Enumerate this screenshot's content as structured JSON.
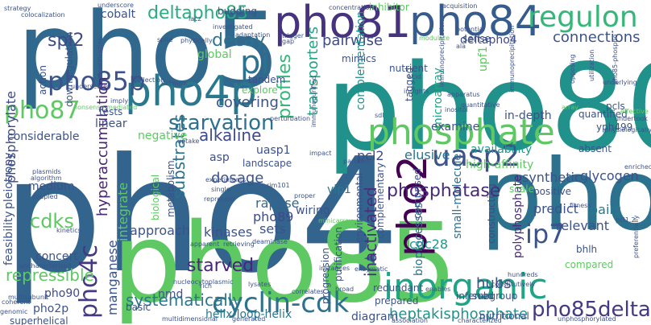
{
  "words": [
    {
      "text": "pho4",
      "color": "#32648e",
      "rotate": 0
    },
    {
      "text": "pho80",
      "color": "#21918c",
      "rotate": 0
    },
    {
      "text": "pho85",
      "color": "#5ec962",
      "rotate": 0
    },
    {
      "text": "pho5",
      "color": "#31688e",
      "rotate": 0
    },
    {
      "text": "pho",
      "color": "#2c728e",
      "rotate": 0
    },
    {
      "text": "pho81",
      "color": "#46327e",
      "rotate": 0
    },
    {
      "text": "pho84",
      "color": "#365c8d",
      "rotate": 0
    },
    {
      "text": "phosphate",
      "color": "#5ec962",
      "rotate": 0
    },
    {
      "text": "inorganic",
      "color": "#20a486",
      "rotate": 0
    },
    {
      "text": "pho4p",
      "color": "#2a788e",
      "rotate": 0
    },
    {
      "text": "pho2",
      "color": "#440154",
      "rotate": 270
    },
    {
      "text": "regulon",
      "color": "#35b779",
      "rotate": 0
    },
    {
      "text": "uasp2",
      "color": "#3b528b",
      "rotate": 0
    },
    {
      "text": "cyclin-cdk",
      "color": "#2c728e",
      "rotate": 0
    },
    {
      "text": "ip7",
      "color": "#3b528b",
      "rotate": 0
    },
    {
      "text": "pi",
      "color": "#2c728e",
      "rotate": 0
    },
    {
      "text": "pho85p",
      "color": "#3b528b",
      "rotate": 0
    },
    {
      "text": "pho87",
      "color": "#5ec962",
      "rotate": 0
    },
    {
      "text": "pho4c",
      "color": "#443983",
      "rotate": 270
    },
    {
      "text": "pho85delta",
      "color": "#443a83",
      "rotate": 0
    },
    {
      "text": "starvation",
      "color": "#2c728e",
      "rotate": 0
    },
    {
      "text": "phosphatase",
      "color": "#482878",
      "rotate": 0
    },
    {
      "text": "deltapho85",
      "color": "#27ad81",
      "rotate": 0
    },
    {
      "text": "spl2",
      "color": "#3e4a89",
      "rotate": 0
    },
    {
      "text": "decay",
      "color": "#2c728e",
      "rotate": 0
    },
    {
      "text": "hubs",
      "color": "#3b528b",
      "rotate": 0
    },
    {
      "text": "starved",
      "color": "#482677",
      "rotate": 0
    },
    {
      "text": "systematically",
      "color": "#2a788e",
      "rotate": 0
    },
    {
      "text": "heptakisphosphate",
      "color": "#21918c",
      "rotate": 0
    },
    {
      "text": "cdc28",
      "color": "#1f988b",
      "rotate": 0
    },
    {
      "text": "cdks",
      "color": "#5ec962",
      "rotate": 0
    },
    {
      "text": "profiles",
      "color": "#35b779",
      "rotate": 270
    },
    {
      "text": "transporters",
      "color": "#20a486",
      "rotate": 270
    },
    {
      "text": "connections",
      "color": "#3b528b",
      "rotate": 0
    },
    {
      "text": "pairwise",
      "color": "#3e4a89",
      "rotate": 0
    },
    {
      "text": "alkaline",
      "color": "#3e4a89",
      "rotate": 0
    },
    {
      "text": "hyperaccumulation",
      "color": "#482677",
      "rotate": 270
    },
    {
      "text": "phosphorylate",
      "color": "#3e4a89",
      "rotate": 270
    },
    {
      "text": "repressible",
      "color": "#5ec962",
      "rotate": 0
    },
    {
      "text": "substrates",
      "color": "#2c728e",
      "rotate": 270
    },
    {
      "text": "inactivated",
      "color": "#472f7d",
      "rotate": 270
    },
    {
      "text": "pho89",
      "color": "#3e4a89",
      "rotate": 0
    },
    {
      "text": "rapase",
      "color": "#31688e",
      "rotate": 0
    },
    {
      "text": "dosage",
      "color": "#3b528b",
      "rotate": 0
    },
    {
      "text": "covering",
      "color": "#3b528b",
      "rotate": 0
    },
    {
      "text": "availability",
      "color": "#1f988b",
      "rotate": 0
    },
    {
      "text": "elusive",
      "color": "#2c728e",
      "rotate": 0
    },
    {
      "text": "pcl2",
      "color": "#3e4a89",
      "rotate": 0
    },
    {
      "text": "complementation",
      "color": "#21918c",
      "rotate": 270
    },
    {
      "text": "microarray",
      "color": "#20a486",
      "rotate": 270
    },
    {
      "text": "glycogen",
      "color": "#3b528b",
      "rotate": 0
    },
    {
      "text": "synthetic",
      "color": "#3b528b",
      "rotate": 0
    },
    {
      "text": "predict",
      "color": "#3b528b",
      "rotate": 0
    },
    {
      "text": "pairs",
      "color": "#2a788e",
      "rotate": 0
    },
    {
      "text": "upf1",
      "color": "#5ec962",
      "rotate": 270
    },
    {
      "text": "deltapho4",
      "color": "#3e4a89",
      "rotate": 0
    },
    {
      "text": "relevant",
      "color": "#3b528b",
      "rotate": 0
    },
    {
      "text": "approach",
      "color": "#3b528b",
      "rotate": 0
    },
    {
      "text": "kinases",
      "color": "#3b528b",
      "rotate": 0
    },
    {
      "text": "sets",
      "color": "#3b528b",
      "rotate": 0
    },
    {
      "text": "integrate",
      "color": "#5ec962",
      "rotate": 270
    },
    {
      "text": "manganese",
      "color": "#3b528b",
      "rotate": 270
    },
    {
      "text": "pho90",
      "color": "#3e4a89",
      "rotate": 0
    },
    {
      "text": "pho2p",
      "color": "#3b528b",
      "rotate": 0
    },
    {
      "text": "superhelical",
      "color": "#3b528b",
      "rotate": 0
    },
    {
      "text": "nmd",
      "color": "#3b528b",
      "rotate": 0
    },
    {
      "text": "basic",
      "color": "#3b528b",
      "rotate": 0
    },
    {
      "text": "helix-loop-helix",
      "color": "#2a788e",
      "rotate": 0
    },
    {
      "text": "diagram",
      "color": "#3b528b",
      "rotate": 0
    },
    {
      "text": "nutritional",
      "color": "#3b528b",
      "rotate": 0
    },
    {
      "text": "bioprocesses",
      "color": "#2c728e",
      "rotate": 270
    },
    {
      "text": "small-molecule",
      "color": "#2c728e",
      "rotate": 270
    },
    {
      "text": "high-affinity",
      "color": "#5ec962",
      "rotate": 0
    },
    {
      "text": "polyphosphate",
      "color": "#482878",
      "rotate": 270
    },
    {
      "text": "constructing",
      "color": "#3e4a89",
      "rotate": 270
    },
    {
      "text": "comprised",
      "color": "#3b528b",
      "rotate": 270
    },
    {
      "text": "complementary",
      "color": "#3b528b",
      "rotate": 270
    },
    {
      "text": "environmental",
      "color": "#3b528b",
      "rotate": 270
    },
    {
      "text": "purification",
      "color": "#3b528b",
      "rotate": 270
    },
    {
      "text": "progression",
      "color": "#3b528b",
      "rotate": 270
    },
    {
      "text": "wiring",
      "color": "#3b528b",
      "rotate": 0
    },
    {
      "text": "vip1",
      "color": "#2a788e",
      "rotate": 0
    },
    {
      "text": "uasp1",
      "color": "#3b528b",
      "rotate": 0
    },
    {
      "text": "landscape",
      "color": "#3b528b",
      "rotate": 0
    },
    {
      "text": "asp",
      "color": "#3b528b",
      "rotate": 0
    },
    {
      "text": "negative",
      "color": "#5ec962",
      "rotate": 0
    },
    {
      "text": "linear",
      "color": "#3b528b",
      "rotate": 0
    },
    {
      "text": "tests",
      "color": "#3b528b",
      "rotate": 0
    },
    {
      "text": "considerable",
      "color": "#3b528b",
      "rotate": 0
    },
    {
      "text": "pleiotropy",
      "color": "#3b528b",
      "rotate": 270
    },
    {
      "text": "feasibility",
      "color": "#3b528b",
      "rotate": 270
    },
    {
      "text": "medium",
      "color": "#3b528b",
      "rotate": 0
    },
    {
      "text": "concert",
      "color": "#3b528b",
      "rotate": 0
    },
    {
      "text": "downregulation",
      "color": "#3b528b",
      "rotate": 270
    },
    {
      "text": "action",
      "color": "#3b528b",
      "rotate": 270
    },
    {
      "text": "cobalt",
      "color": "#3b528b",
      "rotate": 0
    },
    {
      "text": "budding",
      "color": "#3b528b",
      "rotate": 0
    },
    {
      "text": "global",
      "color": "#5ec962",
      "rotate": 0
    },
    {
      "text": "tandem",
      "color": "#3b528b",
      "rotate": 0
    },
    {
      "text": "explore",
      "color": "#5ec962",
      "rotate": 0
    },
    {
      "text": "mimics",
      "color": "#3b528b",
      "rotate": 0
    },
    {
      "text": "nutrient",
      "color": "#3b528b",
      "rotate": 0
    },
    {
      "text": "tagged",
      "color": "#3b528b",
      "rotate": 270
    },
    {
      "text": "inhibitor",
      "color": "#5ec962",
      "rotate": 0
    },
    {
      "text": "examine",
      "color": "#3b528b",
      "rotate": 0
    },
    {
      "text": "in-depth",
      "color": "#3b528b",
      "rotate": 0
    },
    {
      "text": "quantified",
      "color": "#3b528b",
      "rotate": 0
    },
    {
      "text": "yph499",
      "color": "#3b528b",
      "rotate": 0
    },
    {
      "text": "pcls",
      "color": "#3b528b",
      "rotate": 0
    },
    {
      "text": "absent",
      "color": "#3b528b",
      "rotate": 0
    },
    {
      "text": "positive",
      "color": "#3b528b",
      "rotate": 0
    },
    {
      "text": "subgroup",
      "color": "#3b528b",
      "rotate": 0
    },
    {
      "text": "inferred",
      "color": "#3b528b",
      "rotate": 0
    },
    {
      "text": "redundant",
      "color": "#3b528b",
      "rotate": 0
    },
    {
      "text": "prepared",
      "color": "#3b528b",
      "rotate": 0
    },
    {
      "text": "compared",
      "color": "#5ec962",
      "rotate": 0
    },
    {
      "text": "bhlh",
      "color": "#3b528b",
      "rotate": 0
    },
    {
      "text": "scale",
      "color": "#5ec962",
      "rotate": 0
    },
    {
      "text": "sense",
      "color": "#3b528b",
      "rotate": 0
    },
    {
      "text": "biological",
      "color": "#5ec962",
      "rotate": 270
    },
    {
      "text": "metabolism",
      "color": "#3b528b",
      "rotate": 270
    },
    {
      "text": "strategy",
      "color": "#3b528b",
      "rotate": 0
    },
    {
      "text": "underscore",
      "color": "#3b528b",
      "rotate": 0
    },
    {
      "text": "lacz",
      "color": "#3b528b",
      "rotate": 0
    },
    {
      "text": "investigated",
      "color": "#3b528b",
      "rotate": 0
    },
    {
      "text": "adaptation",
      "color": "#3b528b",
      "rotate": 0
    },
    {
      "text": "trigger",
      "color": "#3b528b",
      "rotate": 0
    },
    {
      "text": "concentration",
      "color": "#3b528b",
      "rotate": 0
    },
    {
      "text": "acquisition",
      "color": "#3b528b",
      "rotate": 0
    },
    {
      "text": "potential",
      "color": "#3b528b",
      "rotate": 0
    },
    {
      "text": "modulate",
      "color": "#5ec962",
      "rotate": 0
    },
    {
      "text": "ala",
      "color": "#3b528b",
      "rotate": 0
    },
    {
      "text": "acid",
      "color": "#3b528b",
      "rotate": 0
    },
    {
      "text": "insights",
      "color": "#3b528b",
      "rotate": 0
    },
    {
      "text": "apparatus",
      "color": "#3b528b",
      "rotate": 0
    },
    {
      "text": "quantitative",
      "color": "#3b528b",
      "rotate": 0
    },
    {
      "text": "inositol",
      "color": "#3b528b",
      "rotate": 0
    },
    {
      "text": "sdl",
      "color": "#3b528b",
      "rotate": 0
    },
    {
      "text": "identification",
      "color": "#3b528b",
      "rotate": 270
    },
    {
      "text": "colocalization",
      "color": "#3b528b",
      "rotate": 0
    },
    {
      "text": "physically",
      "color": "#3b528b",
      "rotate": 0
    },
    {
      "text": "spite",
      "color": "#3b528b",
      "rotate": 0
    },
    {
      "text": "collection",
      "color": "#3b528b",
      "rotate": 0
    },
    {
      "text": "network",
      "color": "#3b528b",
      "rotate": 0
    },
    {
      "text": "imply",
      "color": "#3b528b",
      "rotate": 0
    },
    {
      "text": "nonsense-mediated",
      "color": "#5ec962",
      "rotate": 0
    },
    {
      "text": "underscores",
      "color": "#3b528b",
      "rotate": 0
    },
    {
      "text": "uptake",
      "color": "#3b528b",
      "rotate": 0
    },
    {
      "text": "perturbation",
      "color": "#3b528b",
      "rotate": 0
    },
    {
      "text": "immunoprecipitation",
      "color": "#3b528b",
      "rotate": 270
    },
    {
      "text": "immunoprecipitation",
      "color": "#3b528b",
      "rotate": 270
    },
    {
      "text": "underlying",
      "color": "#3b528b",
      "rotate": 0
    },
    {
      "text": "pho85-phospho",
      "color": "#3b528b",
      "rotate": 270
    },
    {
      "text": "undertook",
      "color": "#3b528b",
      "rotate": 0
    },
    {
      "text": "effective",
      "color": "#5ec962",
      "rotate": 0
    },
    {
      "text": "physiologically",
      "color": "#3b528b",
      "rotate": 0
    },
    {
      "text": "utilization",
      "color": "#3b528b",
      "rotate": 270
    },
    {
      "text": "opposing",
      "color": "#3b528b",
      "rotate": 270
    },
    {
      "text": "array",
      "color": "#5ec962",
      "rotate": 0
    },
    {
      "text": "enriched",
      "color": "#3b528b",
      "rotate": 0
    },
    {
      "text": "fitness",
      "color": "#3b528b",
      "rotate": 0
    },
    {
      "text": "pcl1,2",
      "color": "#3b528b",
      "rotate": 0
    },
    {
      "text": "preferentially",
      "color": "#3b528b",
      "rotate": 270
    },
    {
      "text": "hundreds",
      "color": "#3b528b",
      "rotate": 0
    },
    {
      "text": "constitutively",
      "color": "#3b528b",
      "rotate": 0
    },
    {
      "text": "enables",
      "color": "#3b528b",
      "rotate": 0
    },
    {
      "text": "association",
      "color": "#3b528b",
      "rotate": 0
    },
    {
      "text": "characterized",
      "color": "#3b528b",
      "rotate": 0
    },
    {
      "text": "unphosphorylated",
      "color": "#3b528b",
      "rotate": 0
    },
    {
      "text": "correlates",
      "color": "#3b528b",
      "rotate": 0
    },
    {
      "text": "broad",
      "color": "#3b528b",
      "rotate": 0
    },
    {
      "text": "instances",
      "color": "#3b528b",
      "rotate": 0
    },
    {
      "text": "enzymatic",
      "color": "#3b528b",
      "rotate": 0
    },
    {
      "text": "lysates",
      "color": "#3b528b",
      "rotate": 0
    },
    {
      "text": "multidimensional",
      "color": "#3b528b",
      "rotate": 0
    },
    {
      "text": "generated",
      "color": "#3b528b",
      "rotate": 0
    },
    {
      "text": "rich",
      "color": "#3b528b",
      "rotate": 0
    },
    {
      "text": "nucleocytoplasmic",
      "color": "#3b528b",
      "rotate": 0
    },
    {
      "text": "apparent",
      "color": "#3b528b",
      "rotate": 0
    },
    {
      "text": "retrieving",
      "color": "#3b528b",
      "rotate": 0
    },
    {
      "text": "deaminase",
      "color": "#3b528b",
      "rotate": 0
    },
    {
      "text": "single",
      "color": "#3b528b",
      "rotate": 0
    },
    {
      "text": "represent",
      "color": "#3b528b",
      "rotate": 0
    },
    {
      "text": "experiments",
      "color": "#3b528b",
      "rotate": 0
    },
    {
      "text": "rim101",
      "color": "#3b528b",
      "rotate": 0
    },
    {
      "text": "proper",
      "color": "#3b528b",
      "rotate": 0
    },
    {
      "text": "impact",
      "color": "#3b528b",
      "rotate": 0
    },
    {
      "text": "partners",
      "color": "#3b528b",
      "rotate": 0
    },
    {
      "text": "minicarray",
      "color": "#5ec962",
      "rotate": 0
    },
    {
      "text": "plasmids",
      "color": "#3b528b",
      "rotate": 0
    },
    {
      "text": "algorithm",
      "color": "#3b528b",
      "rotate": 0
    },
    {
      "text": "coupled",
      "color": "#3b528b",
      "rotate": 0
    },
    {
      "text": "kinetics",
      "color": "#3b528b",
      "rotate": 0
    },
    {
      "text": "uncharacterized",
      "color": "#3b528b",
      "rotate": 0
    },
    {
      "text": "multisubunit",
      "color": "#3b528b",
      "rotate": 0
    },
    {
      "text": "coherent",
      "color": "#3b528b",
      "rotate": 0
    },
    {
      "text": "genomic",
      "color": "#3b528b",
      "rotate": 0
    },
    {
      "text": "immunopurified",
      "color": "#3b528b",
      "rotate": 270
    },
    {
      "text": "gap",
      "color": "#3b528b",
      "rotate": 0
    }
  ]
}
